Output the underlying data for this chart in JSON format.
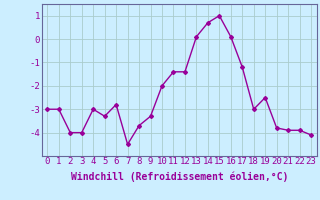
{
  "x": [
    0,
    1,
    2,
    3,
    4,
    5,
    6,
    7,
    8,
    9,
    10,
    11,
    12,
    13,
    14,
    15,
    16,
    17,
    18,
    19,
    20,
    21,
    22,
    23
  ],
  "y": [
    -3.0,
    -3.0,
    -4.0,
    -4.0,
    -3.0,
    -3.3,
    -2.8,
    -4.5,
    -3.7,
    -3.3,
    -2.0,
    -1.4,
    -1.4,
    0.1,
    0.7,
    1.0,
    0.1,
    -1.2,
    -3.0,
    -2.5,
    -3.8,
    -3.9,
    -3.9,
    -4.1
  ],
  "line_color": "#990099",
  "marker": "D",
  "marker_size": 2,
  "bg_color": "#cceeff",
  "grid_color": "#aacccc",
  "xlabel": "Windchill (Refroidissement éolien,°C)",
  "ylabel": "",
  "title": "",
  "xlim": [
    -0.5,
    23.5
  ],
  "ylim": [
    -5.0,
    1.5
  ],
  "yticks": [
    -4,
    -3,
    -2,
    -1,
    0,
    1
  ],
  "xticks": [
    0,
    1,
    2,
    3,
    4,
    5,
    6,
    7,
    8,
    9,
    10,
    11,
    12,
    13,
    14,
    15,
    16,
    17,
    18,
    19,
    20,
    21,
    22,
    23
  ],
  "xlabel_fontsize": 7,
  "tick_fontsize": 6.5,
  "line_width": 1.0,
  "spine_color": "#666699"
}
